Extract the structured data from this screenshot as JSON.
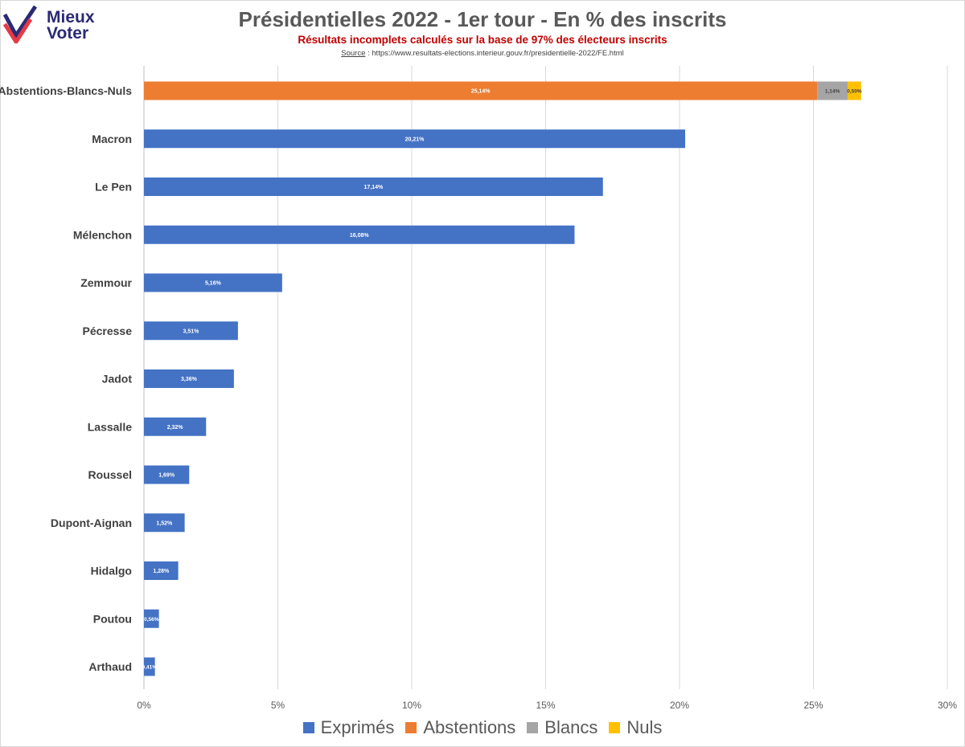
{
  "logo": {
    "line1": "Mieux",
    "line2": "Voter"
  },
  "source": {
    "prefix": "Source",
    "text": " : https://www.resultats-elections.interieur.gouv.fr/presidentielle-2022/FE.html"
  },
  "colors": {
    "exprimes": "#4472c4",
    "abstentions": "#ed7d31",
    "blancs": "#a5a5a5",
    "nuls": "#ffc000"
  },
  "chart_data": {
    "type": "bar",
    "orientation": "horizontal",
    "stacked": true,
    "title": "Présidentielles 2022 - 1er tour - En % des inscrits",
    "subtitle": "Résultats incomplets calculés sur la base de 97% des électeurs inscrits",
    "categories": [
      "Abstentions-Blancs-Nuls",
      "Macron",
      "Le Pen",
      "Mélenchon",
      "Zemmour",
      "Pécresse",
      "Jadot",
      "Lassalle",
      "Roussel",
      "Dupont-Aignan",
      "Hidalgo",
      "Poutou",
      "Arthaud"
    ],
    "series": [
      {
        "name": "Exprimés",
        "color": "#4472c4",
        "values": [
          0,
          20.21,
          17.14,
          16.08,
          5.16,
          3.51,
          3.36,
          2.32,
          1.69,
          1.52,
          1.28,
          0.56,
          0.41
        ],
        "labels": [
          "",
          "20,21%",
          "17,14%",
          "16,08%",
          "5,16%",
          "3,51%",
          "3,36%",
          "2,32%",
          "1,69%",
          "1,52%",
          "1,28%",
          "0,56%",
          "0,41%"
        ]
      },
      {
        "name": "Abstentions",
        "color": "#ed7d31",
        "values": [
          25.14,
          0,
          0,
          0,
          0,
          0,
          0,
          0,
          0,
          0,
          0,
          0,
          0
        ],
        "labels": [
          "25,14%",
          "",
          "",
          "",
          "",
          "",
          "",
          "",
          "",
          "",
          "",
          "",
          ""
        ]
      },
      {
        "name": "Blancs",
        "color": "#a5a5a5",
        "values": [
          1.14,
          0,
          0,
          0,
          0,
          0,
          0,
          0,
          0,
          0,
          0,
          0,
          0
        ],
        "labels": [
          "1,14%",
          "",
          "",
          "",
          "",
          "",
          "",
          "",
          "",
          "",
          "",
          "",
          ""
        ]
      },
      {
        "name": "Nuls",
        "color": "#ffc000",
        "values": [
          0.5,
          0,
          0,
          0,
          0,
          0,
          0,
          0,
          0,
          0,
          0,
          0,
          0
        ],
        "labels": [
          "0,50%",
          "",
          "",
          "",
          "",
          "",
          "",
          "",
          "",
          "",
          "",
          "",
          ""
        ]
      }
    ],
    "xlim": [
      0,
      30
    ],
    "xticks": [
      0,
      5,
      10,
      15,
      20,
      25,
      30
    ],
    "xtick_labels": [
      "0%",
      "5%",
      "10%",
      "15%",
      "20%",
      "25%",
      "30%"
    ],
    "grid": true,
    "legend_position": "bottom"
  }
}
